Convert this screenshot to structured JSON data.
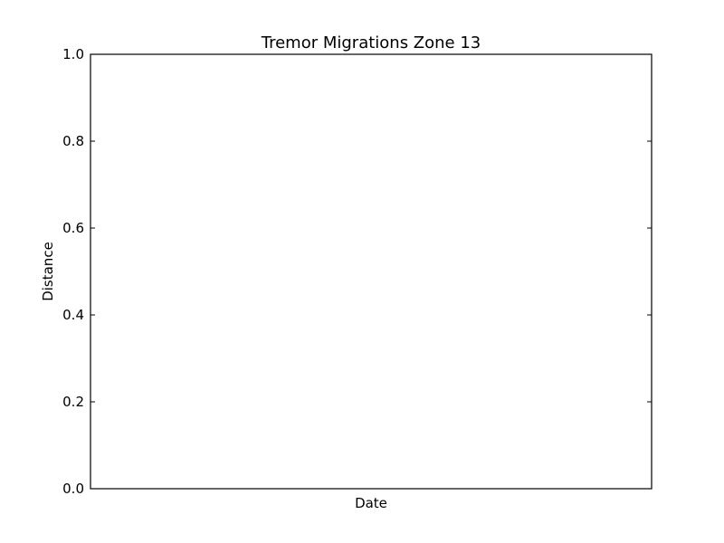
{
  "chart_data": {
    "type": "line",
    "title": "Tremor Migrations Zone 13",
    "xlabel": "Date",
    "ylabel": "Distance",
    "ylim": [
      0,
      1
    ],
    "y_ticks": [
      "0.0",
      "0.2",
      "0.4",
      "0.6",
      "0.8",
      "1.0"
    ],
    "x_ticks": [],
    "series": [],
    "grid": false,
    "legend": "none"
  }
}
